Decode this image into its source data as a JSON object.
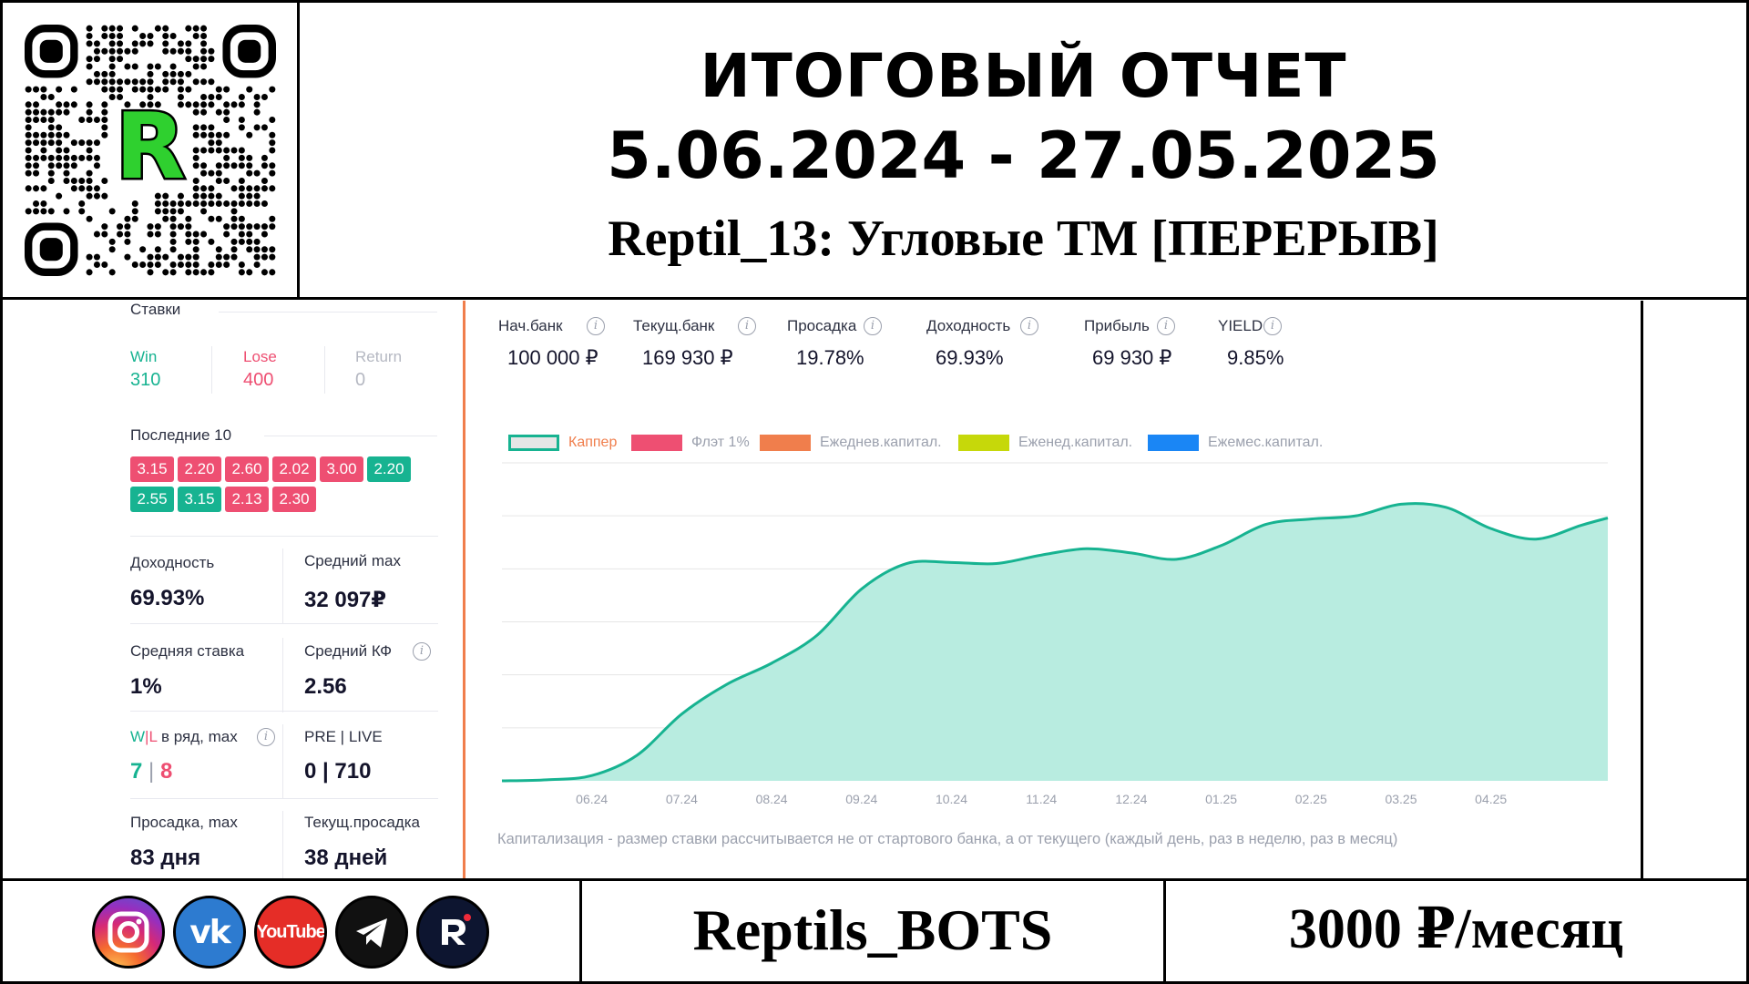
{
  "header": {
    "title_line1": "ИТОГОВЫЙ ОТЧЕТ",
    "title_line2": "5.06.2024 - 27.05.2025",
    "title_line3": "Reptil_13: Угловые ТМ [ПЕРЕРЫВ]",
    "qr_logo_letter": "R"
  },
  "stats": {
    "section_title": "Ставки",
    "win_label": "Win",
    "win_value": "310",
    "lose_label": "Lose",
    "lose_value": "400",
    "return_label": "Return",
    "return_value": "0",
    "last10_title": "Последние 10",
    "last10": [
      {
        "v": "3.15",
        "r": "loss"
      },
      {
        "v": "2.20",
        "r": "loss"
      },
      {
        "v": "2.60",
        "r": "loss"
      },
      {
        "v": "2.02",
        "r": "loss"
      },
      {
        "v": "3.00",
        "r": "loss"
      },
      {
        "v": "2.20",
        "r": "win"
      },
      {
        "v": "2.55",
        "r": "win"
      },
      {
        "v": "3.15",
        "r": "win"
      },
      {
        "v": "2.13",
        "r": "loss"
      },
      {
        "v": "2.30",
        "r": "loss"
      }
    ],
    "yield_label": "Доходность",
    "yield_value": "69.93%",
    "avg_max_label": "Средний max",
    "avg_max_value": "32 097₽",
    "avg_stake_label": "Средняя ставка",
    "avg_stake_value": "1%",
    "avg_kf_label": "Средний КФ",
    "avg_kf_value": "2.56",
    "streak_label_w": "W",
    "streak_label_sep": "|",
    "streak_label_l": "L",
    "streak_label_rest": " в ряд, max",
    "streak_w": "7",
    "streak_sep": " | ",
    "streak_l": "8",
    "pre_live_label": "PRE | LIVE",
    "pre_live_value": "0 | 710",
    "drawdown_max_label": "Просадка, max",
    "drawdown_max_value": "83 дня",
    "current_drawdown_label": "Текущ.просадка",
    "current_drawdown_value": "38 дней"
  },
  "kpis": [
    {
      "label": "Нач.банк",
      "value": "100 000 ₽"
    },
    {
      "label": "Текущ.банк",
      "value": "169 930 ₽"
    },
    {
      "label": "Просадка",
      "value": "19.78%"
    },
    {
      "label": "Доходность",
      "value": "69.93%"
    },
    {
      "label": "Прибыль",
      "value": "69 930 ₽"
    },
    {
      "label": "YIELD",
      "value": "9.85%"
    }
  ],
  "legend": [
    {
      "name": "Каппер",
      "color": "#17b391",
      "fill": "#e6e6e6",
      "active": true
    },
    {
      "name": "Флэт 1%",
      "color": "#ee4f72",
      "active": false
    },
    {
      "name": "Ежеднев.капитал.",
      "color": "#f07e4c",
      "active": false
    },
    {
      "name": "Еженед.капитал.",
      "color": "#c6d80a",
      "active": false
    },
    {
      "name": "Ежемес.капитал.",
      "color": "#1a86f5",
      "active": false
    }
  ],
  "caption": "Капитализация - размер ставки рассчитывается не от стартового банка, а от текущего (каждый день, раз в неделю, раз в месяц)",
  "chart_data": {
    "type": "area",
    "title": "",
    "xlabel": "",
    "ylabel": "",
    "x_ticks": [
      "06.24",
      "07.24",
      "08.24",
      "09.24",
      "10.24",
      "11.24",
      "12.24",
      "01.25",
      "02.25",
      "03.25",
      "04.25"
    ],
    "x": [
      0,
      0.5,
      1,
      1.5,
      2,
      2.5,
      3,
      3.5,
      4,
      4.5,
      5,
      5.5,
      6,
      6.5,
      7,
      7.5,
      8,
      8.5,
      9,
      9.5,
      10,
      10.5,
      11,
      11.5,
      12,
      12.3
    ],
    "series": [
      {
        "name": "Каппер",
        "values": [
          0,
          1,
          5,
          24,
          63,
          91,
          111,
          137,
          181,
          205,
          206,
          205,
          213,
          219,
          215,
          209,
          222,
          242,
          247,
          250,
          261,
          258,
          238,
          228,
          241,
          248
        ]
      }
    ],
    "ylim": [
      0,
      300
    ],
    "grid": true,
    "legend_position": "top-left",
    "colors": {
      "line": "#17b391",
      "fill": "#b8ece0",
      "grid": "#e6e6e6",
      "tick": "#9ba0ad"
    }
  },
  "footer": {
    "brand": "Reptils_BOTS",
    "price": "3000 ₽/месяц",
    "social_icons": [
      "instagram-icon",
      "vk-icon",
      "youtube-icon",
      "telegram-icon",
      "reptils-icon"
    ],
    "youtube_text": "YouTube",
    "vk_text": "vk"
  }
}
